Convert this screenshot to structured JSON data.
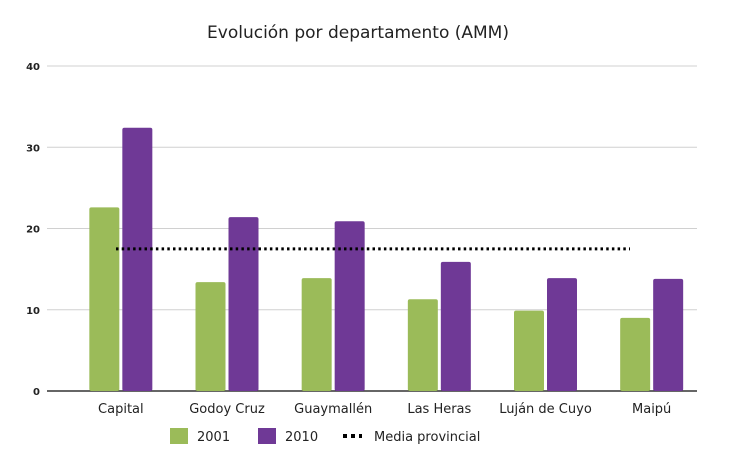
{
  "chart_data": {
    "type": "bar",
    "title": "Evolución por departamento (AMM)",
    "xlabel": "",
    "ylabel": "",
    "ylim": [
      0,
      40
    ],
    "yticks": [
      0,
      10,
      20,
      30,
      40
    ],
    "grid": true,
    "legend_placement": "bottom",
    "categories": [
      "Capital",
      "Godoy Cruz",
      "Guaymallén",
      "Las Heras",
      "Luján de Cuyo",
      "Maipú"
    ],
    "series": [
      {
        "name": "2001",
        "color": "#9bbb59",
        "values": [
          22.6,
          13.4,
          13.9,
          11.3,
          9.9,
          9.0
        ]
      },
      {
        "name": "2010",
        "color": "#6f3996",
        "values": [
          32.4,
          21.4,
          20.9,
          15.9,
          13.9,
          13.8
        ]
      }
    ],
    "reference_line": {
      "name": "Media provincial",
      "value": 17.5,
      "style": "dotted",
      "color": "#000000"
    }
  }
}
